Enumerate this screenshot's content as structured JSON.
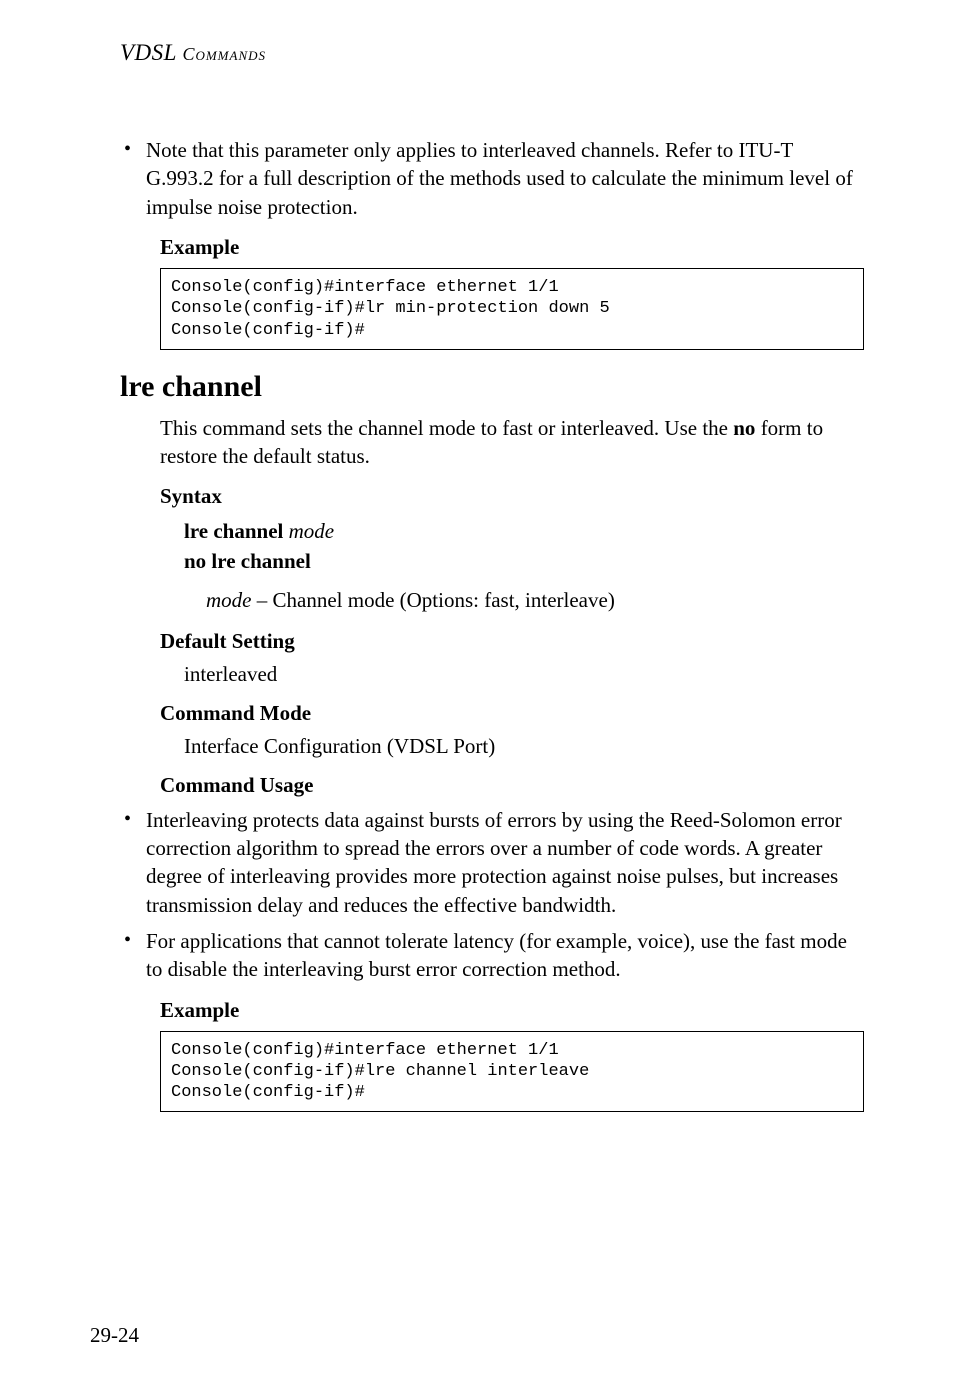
{
  "header": {
    "title_italic": "VDSL",
    "title_smallcaps": " Commands"
  },
  "top_bullet": "Note that this parameter only applies to interleaved channels. Refer to ITU-T G.993.2 for a full description of the methods used to calculate the minimum level of impulse noise protection.",
  "example_label": "Example",
  "code1": "Console(config)#interface ethernet 1/1\nConsole(config-if)#lr min-protection down 5\nConsole(config-if)#",
  "section": {
    "title": "lre channel",
    "intro_pre": "This command sets the channel mode to fast or interleaved. Use the ",
    "intro_bold": "no",
    "intro_post": " form to restore the default status.",
    "syntax_label": "Syntax",
    "syntax_cmd1": "lre channel",
    "syntax_arg1": " mode",
    "syntax_cmd2": "no lre channel",
    "arg_name": "mode",
    "arg_desc": " – Channel mode (Options: fast, interleave)",
    "default_label": "Default Setting",
    "default_value": "interleaved",
    "cmdmode_label": "Command Mode",
    "cmdmode_value": "Interface Configuration (VDSL Port)",
    "usage_label": "Command Usage",
    "usage_bullets": [
      "Interleaving protects data against bursts of errors by using the Reed-Solomon error correction algorithm to spread the errors over a number of code words. A greater degree of interleaving provides more protection against noise pulses, but increases transmission delay and reduces the effective bandwidth.",
      "For applications that cannot tolerate latency (for example, voice), use the fast mode to disable the interleaving burst error correction method."
    ],
    "example_label": "Example",
    "code2": "Console(config)#interface ethernet 1/1\nConsole(config-if)#lre channel interleave\nConsole(config-if)#"
  },
  "page_number": "29-24"
}
